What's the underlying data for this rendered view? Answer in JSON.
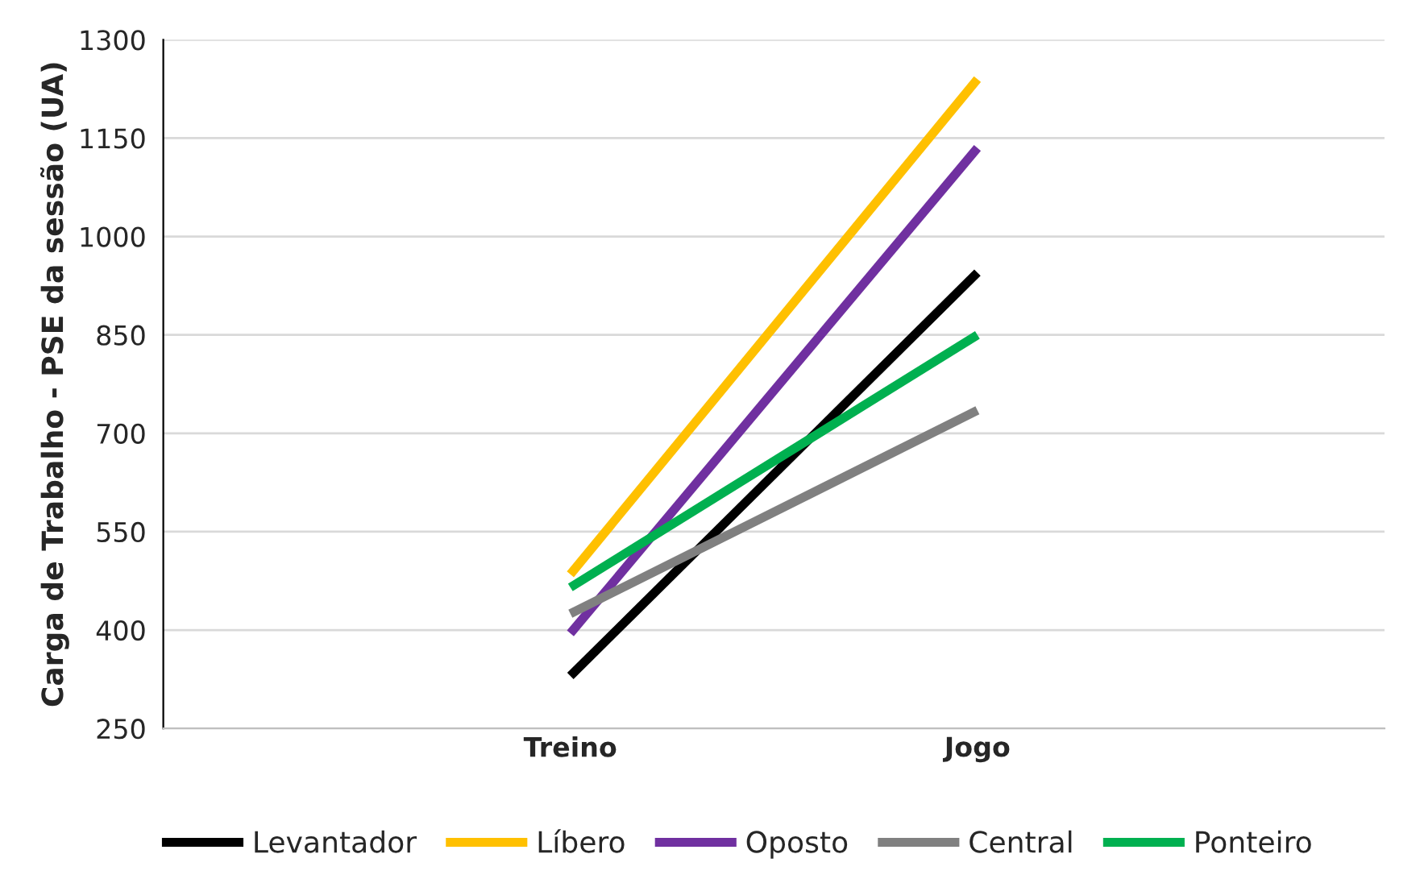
{
  "chart_data": {
    "type": "line",
    "ylabel": "Carga de Trabalho - PSE da sessão (UA)",
    "categories": [
      "Treino",
      "Jogo"
    ],
    "series": [
      {
        "name": "Levantador",
        "color": "#000000",
        "values": [
          330,
          945
        ]
      },
      {
        "name": "Líbero",
        "color": "#ffc000",
        "values": [
          485,
          1240
        ]
      },
      {
        "name": "Oposto",
        "color": "#7030a0",
        "values": [
          395,
          1135
        ]
      },
      {
        "name": "Central",
        "color": "#808080",
        "values": [
          425,
          735
        ]
      },
      {
        "name": "Ponteiro",
        "color": "#00b050",
        "values": [
          465,
          850
        ]
      }
    ],
    "ylim": [
      250,
      1300
    ],
    "yticks": [
      250,
      400,
      550,
      700,
      850,
      1000,
      1150,
      1300
    ],
    "grid": "y",
    "legend": "bottom",
    "marker": "none",
    "line_style": "solid"
  }
}
